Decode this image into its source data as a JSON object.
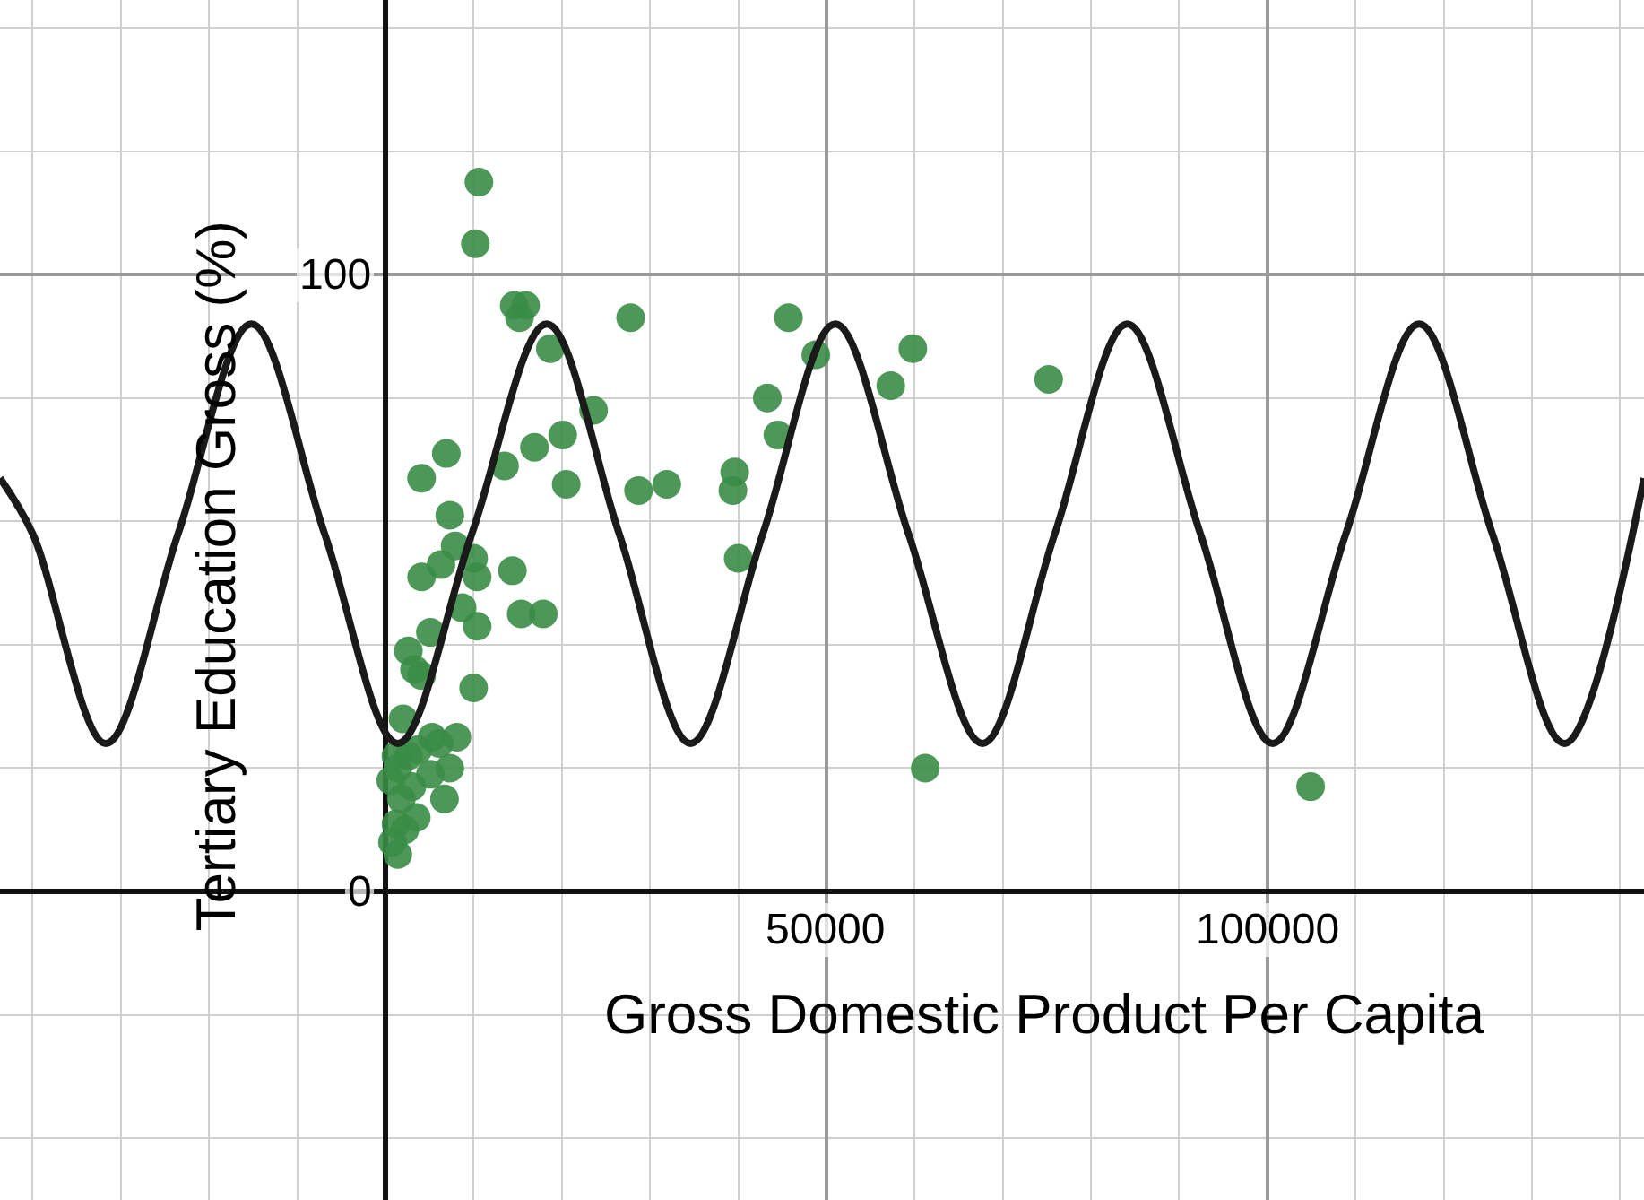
{
  "chart_data": {
    "type": "scatter",
    "xlabel": "Gross Domestic Product Per Capita",
    "ylabel": "Tertiary Education Gross (%)",
    "xlim": [
      -43700,
      142700
    ],
    "ylim": [
      -50,
      144.5
    ],
    "xticks": [
      {
        "value": 0,
        "label": null
      },
      50000,
      100000
    ],
    "yticks": [
      0,
      100
    ],
    "grid": true,
    "marker": "circle",
    "series": [
      {
        "color": "#3a8c46",
        "x": [
          10600,
          10200,
          14600,
          15900,
          15200,
          18700,
          27800,
          45700,
          48800,
          59800,
          57300,
          75200,
          43300,
          44500,
          23600,
          20100,
          16900,
          13500,
          6900,
          4100,
          20500,
          28700,
          31900,
          39600,
          39400,
          40000,
          7300,
          7900,
          10000,
          6300,
          4100,
          14400,
          10400,
          8700,
          15400,
          17900,
          5100,
          10400,
          2600,
          3300,
          4100,
          10000,
          2000,
          5300,
          8100,
          3700,
          6100,
          2600,
          1400,
          7300,
          5100,
          3000,
          6700,
          1800,
          3500,
          1200,
          2200,
          800,
          1400,
          61200,
          104900,
          1200,
          600
        ],
        "values": [
          115,
          105,
          95,
          95,
          93,
          88,
          93,
          93,
          87,
          88,
          82,
          83,
          80,
          74,
          78,
          74,
          72,
          69,
          71,
          67,
          66,
          65,
          66,
          68,
          65,
          54,
          61,
          56,
          54,
          53,
          51,
          52,
          51,
          46,
          45,
          45,
          42,
          43,
          39,
          36,
          35,
          33,
          28,
          25,
          25,
          23,
          24,
          22,
          20,
          20,
          19,
          17,
          15,
          15,
          12,
          11,
          10,
          8,
          6,
          20,
          17,
          22,
          18
        ]
      },
      {
        "type": "line",
        "color": "#1a1a1a",
        "line_style": "solid",
        "marker": "none",
        "x": [
          -43700,
          -40000,
          -31700,
          -23500,
          -15200,
          -6900,
          1400,
          9800,
          18300,
          26500,
          34600,
          42800,
          51000,
          59300,
          67700,
          75900,
          84100,
          92400,
          100600,
          108900,
          117200,
          125500,
          133700,
          142700
        ],
        "values": [
          67,
          58,
          24,
          58,
          92,
          58,
          24,
          58,
          92,
          58,
          24,
          58,
          92,
          58,
          24,
          58,
          92,
          58,
          24,
          58,
          92,
          58,
          24,
          67
        ]
      }
    ]
  }
}
